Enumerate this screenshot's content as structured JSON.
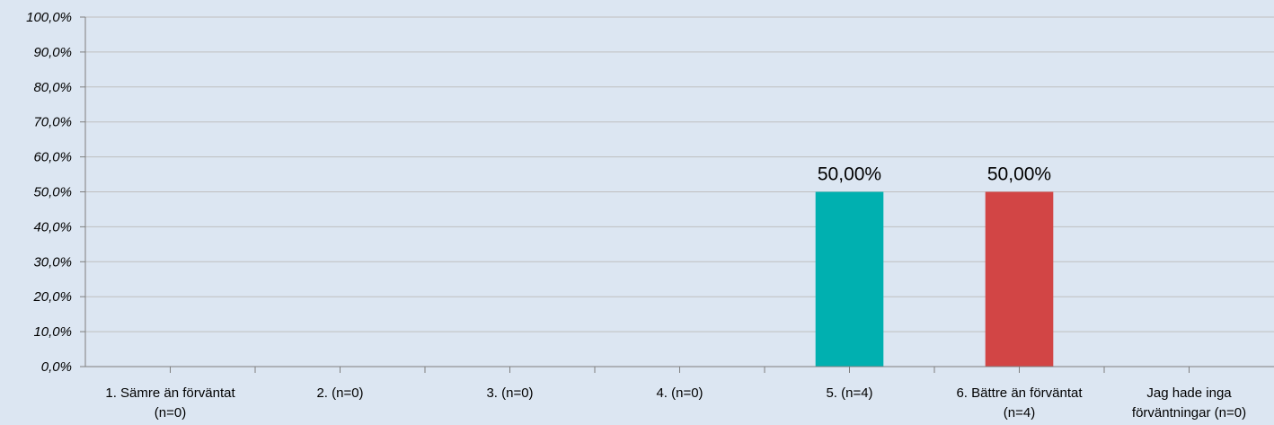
{
  "chart_data": {
    "type": "bar",
    "categories": [
      [
        "1. Sämre än förväntat",
        "(n=0)"
      ],
      [
        "2. (n=0)"
      ],
      [
        "3. (n=0)"
      ],
      [
        "4. (n=0)"
      ],
      [
        "5. (n=4)"
      ],
      [
        "6. Bättre än förväntat",
        "(n=4)"
      ],
      [
        "Jag hade inga",
        "förväntningar (n=0)"
      ]
    ],
    "values": [
      0,
      0,
      0,
      0,
      50,
      50,
      0
    ],
    "data_labels": [
      null,
      null,
      null,
      null,
      "50,00%",
      "50,00%",
      null
    ],
    "bar_colors": [
      "#00b0b0",
      "#00b0b0",
      "#00b0b0",
      "#00b0b0",
      "#00b0b0",
      "#d24545",
      "#00b0b0"
    ],
    "ylim": [
      0,
      100
    ],
    "yticks": [
      0,
      10,
      20,
      30,
      40,
      50,
      60,
      70,
      80,
      90,
      100
    ],
    "ytick_labels": [
      "0,0%",
      "10,0%",
      "20,0%",
      "30,0%",
      "40,0%",
      "50,0%",
      "60,0%",
      "70,0%",
      "80,0%",
      "90,0%",
      "100,0%"
    ],
    "grid": true,
    "legend": "none",
    "background_color": "#dce6f2",
    "grid_color": "#bfbfbf",
    "axis_color": "#7f7f7f"
  }
}
